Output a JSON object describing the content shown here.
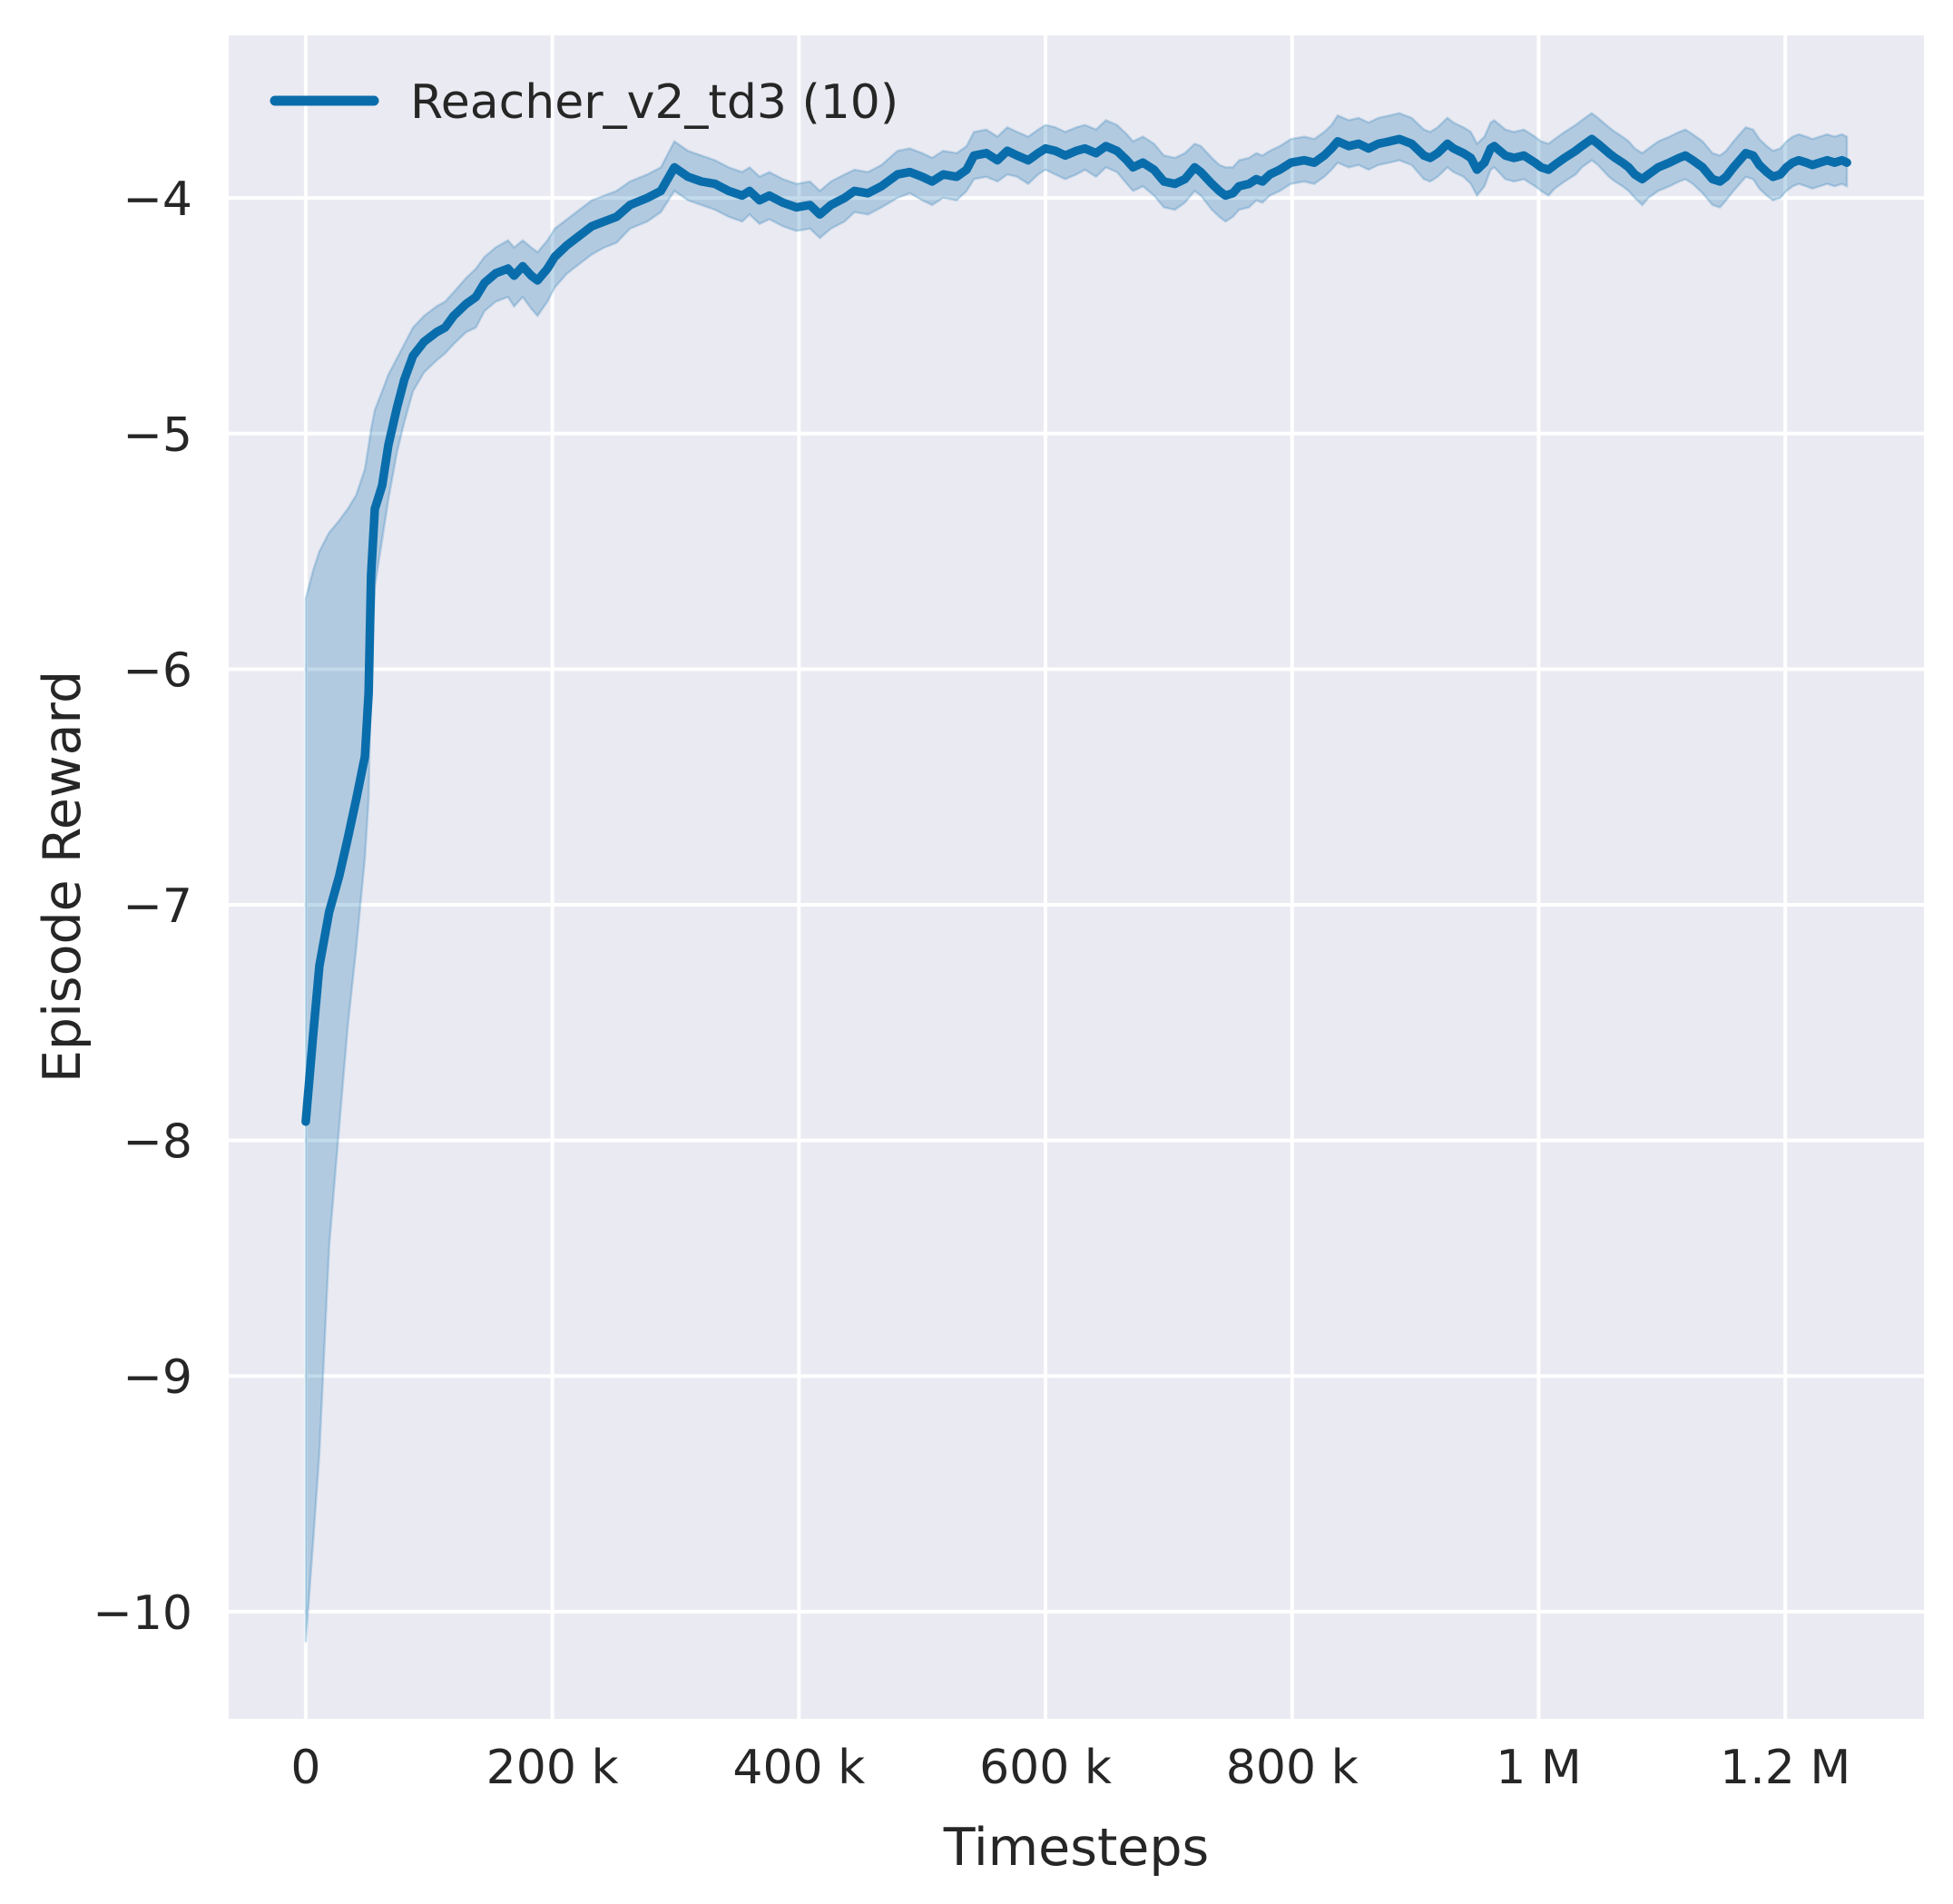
{
  "figure": {
    "background_color": "#ffffff",
    "axes_background_color": "#eaeaf2",
    "grid_color": "#ffffff",
    "text_color": "#262626"
  },
  "chart_data": {
    "type": "line",
    "title": "",
    "xlabel": "Timesteps",
    "ylabel": "Episode Reward",
    "grid": true,
    "legend_position": "upper left",
    "xlim_thousands": [
      -62.5,
      1312.5
    ],
    "ylim": [
      -10.455,
      -3.31
    ],
    "x_ticks": [
      {
        "value": 0,
        "label": "0"
      },
      {
        "value": 200,
        "label": "200 k"
      },
      {
        "value": 400,
        "label": "400 k"
      },
      {
        "value": 600,
        "label": "600 k"
      },
      {
        "value": 800,
        "label": "800 k"
      },
      {
        "value": 1000,
        "label": "1 M"
      },
      {
        "value": 1200,
        "label": "1.2 M"
      }
    ],
    "y_ticks": [
      {
        "value": -4,
        "label": "−4"
      },
      {
        "value": -5,
        "label": "−5"
      },
      {
        "value": -6,
        "label": "−6"
      },
      {
        "value": -7,
        "label": "−7"
      },
      {
        "value": -8,
        "label": "−8"
      },
      {
        "value": -9,
        "label": "−9"
      },
      {
        "value": -10,
        "label": "−10"
      }
    ],
    "series": [
      {
        "name": "Reacher_v2_td3 (10)",
        "color": "#0a6dab",
        "band_fill": "rgba(10,109,171,0.25)",
        "band_edge": "rgba(10,109,171,0.22)",
        "x_thousands": [
          0,
          6,
          11,
          19,
          27,
          34,
          41,
          48,
          51,
          53,
          56,
          62,
          67,
          74,
          80,
          87,
          96,
          106,
          113,
          120,
          130,
          138,
          145,
          154,
          164,
          169,
          176,
          183,
          188,
          196,
          202,
          212,
          222,
          232,
          242,
          252,
          263,
          277,
          288,
          299,
          310,
          321,
          332,
          343,
          354,
          360,
          368,
          376,
          387,
          398,
          409,
          417,
          426,
          437,
          445,
          456,
          467,
          480,
          490,
          500,
          508,
          517,
          528,
          536,
          542,
          552,
          561,
          569,
          577,
          586,
          594,
          600,
          608,
          616,
          625,
          632,
          641,
          649,
          658,
          666,
          671,
          679,
          688,
          696,
          705,
          713,
          721,
          726,
          735,
          741,
          746,
          752,
          757,
          765,
          771,
          776,
          782,
          790,
          799,
          810,
          818,
          826,
          832,
          837,
          846,
          854,
          862,
          870,
          879,
          887,
          897,
          907,
          912,
          918,
          926,
          931,
          939,
          945,
          950,
          956,
          961,
          964,
          973,
          980,
          988,
          997,
          1002,
          1008,
          1013,
          1021,
          1030,
          1035,
          1043,
          1048,
          1057,
          1062,
          1068,
          1073,
          1078,
          1084,
          1089,
          1097,
          1106,
          1114,
          1119,
          1125,
          1133,
          1141,
          1147,
          1152,
          1158,
          1163,
          1168,
          1174,
          1179,
          1185,
          1190,
          1196,
          1201,
          1206,
          1211,
          1217,
          1222,
          1228,
          1234,
          1240,
          1246,
          1250
        ],
        "mean": [
          -7.92,
          -7.55,
          -7.26,
          -7.03,
          -6.88,
          -6.72,
          -6.55,
          -6.37,
          -6.1,
          -5.6,
          -5.32,
          -5.22,
          -5.05,
          -4.89,
          -4.77,
          -4.67,
          -4.61,
          -4.57,
          -4.55,
          -4.5,
          -4.45,
          -4.42,
          -4.36,
          -4.32,
          -4.3,
          -4.33,
          -4.29,
          -4.33,
          -4.35,
          -4.3,
          -4.25,
          -4.2,
          -4.16,
          -4.12,
          -4.1,
          -4.08,
          -4.03,
          -4.0,
          -3.97,
          -3.87,
          -3.91,
          -3.93,
          -3.94,
          -3.97,
          -3.99,
          -3.97,
          -4.01,
          -3.99,
          -4.02,
          -4.04,
          -4.03,
          -4.07,
          -4.03,
          -4.0,
          -3.97,
          -3.98,
          -3.95,
          -3.9,
          -3.89,
          -3.91,
          -3.93,
          -3.9,
          -3.91,
          -3.88,
          -3.82,
          -3.81,
          -3.84,
          -3.8,
          -3.82,
          -3.84,
          -3.81,
          -3.79,
          -3.8,
          -3.82,
          -3.8,
          -3.79,
          -3.81,
          -3.78,
          -3.8,
          -3.84,
          -3.87,
          -3.85,
          -3.88,
          -3.93,
          -3.94,
          -3.92,
          -3.87,
          -3.89,
          -3.94,
          -3.97,
          -3.99,
          -3.98,
          -3.95,
          -3.94,
          -3.92,
          -3.93,
          -3.9,
          -3.88,
          -3.85,
          -3.84,
          -3.85,
          -3.82,
          -3.79,
          -3.76,
          -3.78,
          -3.77,
          -3.79,
          -3.77,
          -3.76,
          -3.75,
          -3.77,
          -3.82,
          -3.83,
          -3.81,
          -3.77,
          -3.79,
          -3.81,
          -3.83,
          -3.88,
          -3.85,
          -3.79,
          -3.78,
          -3.82,
          -3.83,
          -3.82,
          -3.85,
          -3.87,
          -3.88,
          -3.86,
          -3.83,
          -3.8,
          -3.78,
          -3.75,
          -3.77,
          -3.81,
          -3.83,
          -3.85,
          -3.87,
          -3.9,
          -3.92,
          -3.9,
          -3.87,
          -3.85,
          -3.83,
          -3.82,
          -3.84,
          -3.87,
          -3.92,
          -3.93,
          -3.91,
          -3.87,
          -3.84,
          -3.81,
          -3.82,
          -3.86,
          -3.89,
          -3.91,
          -3.9,
          -3.87,
          -3.85,
          -3.84,
          -3.85,
          -3.86,
          -3.85,
          -3.84,
          -3.85,
          -3.84,
          -3.85
        ],
        "lower": [
          -10.13,
          -9.7,
          -9.33,
          -8.45,
          -7.95,
          -7.52,
          -7.18,
          -6.8,
          -6.55,
          -6.0,
          -5.65,
          -5.45,
          -5.28,
          -5.08,
          -4.95,
          -4.82,
          -4.74,
          -4.69,
          -4.66,
          -4.62,
          -4.57,
          -4.55,
          -4.48,
          -4.44,
          -4.42,
          -4.46,
          -4.42,
          -4.47,
          -4.5,
          -4.44,
          -4.38,
          -4.32,
          -4.28,
          -4.24,
          -4.21,
          -4.19,
          -4.13,
          -4.1,
          -4.06,
          -3.97,
          -4.01,
          -4.03,
          -4.05,
          -4.08,
          -4.1,
          -4.07,
          -4.11,
          -4.09,
          -4.12,
          -4.14,
          -4.13,
          -4.17,
          -4.13,
          -4.1,
          -4.06,
          -4.07,
          -4.04,
          -4.0,
          -3.98,
          -4.01,
          -4.03,
          -4.0,
          -4.01,
          -3.97,
          -3.92,
          -3.91,
          -3.93,
          -3.9,
          -3.91,
          -3.94,
          -3.9,
          -3.88,
          -3.9,
          -3.92,
          -3.9,
          -3.88,
          -3.91,
          -3.87,
          -3.89,
          -3.94,
          -3.97,
          -3.95,
          -3.99,
          -4.04,
          -4.05,
          -4.02,
          -3.97,
          -3.99,
          -4.05,
          -4.08,
          -4.1,
          -4.08,
          -4.05,
          -4.04,
          -4.01,
          -4.02,
          -3.99,
          -3.97,
          -3.94,
          -3.93,
          -3.94,
          -3.91,
          -3.88,
          -3.85,
          -3.87,
          -3.86,
          -3.88,
          -3.86,
          -3.85,
          -3.84,
          -3.86,
          -3.92,
          -3.93,
          -3.91,
          -3.87,
          -3.89,
          -3.91,
          -3.94,
          -3.99,
          -3.95,
          -3.88,
          -3.87,
          -3.92,
          -3.93,
          -3.92,
          -3.95,
          -3.97,
          -3.99,
          -3.96,
          -3.93,
          -3.9,
          -3.87,
          -3.84,
          -3.86,
          -3.91,
          -3.93,
          -3.95,
          -3.97,
          -4.0,
          -4.03,
          -4.0,
          -3.97,
          -3.95,
          -3.93,
          -3.92,
          -3.94,
          -3.98,
          -4.03,
          -4.04,
          -4.01,
          -3.97,
          -3.94,
          -3.91,
          -3.92,
          -3.96,
          -3.99,
          -4.01,
          -4.0,
          -3.97,
          -3.95,
          -3.94,
          -3.95,
          -3.96,
          -3.95,
          -3.94,
          -3.95,
          -3.94,
          -3.95
        ],
        "upper": [
          -5.7,
          -5.58,
          -5.5,
          -5.42,
          -5.37,
          -5.32,
          -5.26,
          -5.15,
          -5.05,
          -4.98,
          -4.9,
          -4.82,
          -4.75,
          -4.68,
          -4.62,
          -4.55,
          -4.5,
          -4.46,
          -4.44,
          -4.4,
          -4.34,
          -4.3,
          -4.25,
          -4.21,
          -4.18,
          -4.21,
          -4.18,
          -4.21,
          -4.23,
          -4.18,
          -4.13,
          -4.09,
          -4.05,
          -4.01,
          -3.99,
          -3.97,
          -3.93,
          -3.9,
          -3.87,
          -3.76,
          -3.8,
          -3.82,
          -3.84,
          -3.87,
          -3.89,
          -3.87,
          -3.91,
          -3.89,
          -3.92,
          -3.94,
          -3.93,
          -3.97,
          -3.93,
          -3.9,
          -3.88,
          -3.89,
          -3.86,
          -3.8,
          -3.79,
          -3.81,
          -3.83,
          -3.8,
          -3.81,
          -3.78,
          -3.72,
          -3.71,
          -3.74,
          -3.7,
          -3.72,
          -3.74,
          -3.71,
          -3.69,
          -3.7,
          -3.72,
          -3.7,
          -3.69,
          -3.71,
          -3.67,
          -3.69,
          -3.73,
          -3.76,
          -3.74,
          -3.77,
          -3.82,
          -3.83,
          -3.81,
          -3.77,
          -3.78,
          -3.83,
          -3.86,
          -3.87,
          -3.87,
          -3.84,
          -3.83,
          -3.81,
          -3.82,
          -3.8,
          -3.78,
          -3.75,
          -3.74,
          -3.75,
          -3.72,
          -3.69,
          -3.65,
          -3.67,
          -3.66,
          -3.68,
          -3.66,
          -3.65,
          -3.64,
          -3.66,
          -3.71,
          -3.72,
          -3.7,
          -3.66,
          -3.68,
          -3.7,
          -3.72,
          -3.77,
          -3.74,
          -3.68,
          -3.67,
          -3.71,
          -3.72,
          -3.71,
          -3.74,
          -3.76,
          -3.77,
          -3.75,
          -3.72,
          -3.69,
          -3.67,
          -3.64,
          -3.66,
          -3.7,
          -3.72,
          -3.74,
          -3.76,
          -3.79,
          -3.81,
          -3.79,
          -3.76,
          -3.74,
          -3.72,
          -3.71,
          -3.73,
          -3.76,
          -3.81,
          -3.82,
          -3.8,
          -3.76,
          -3.73,
          -3.7,
          -3.71,
          -3.75,
          -3.78,
          -3.8,
          -3.79,
          -3.76,
          -3.74,
          -3.73,
          -3.74,
          -3.75,
          -3.74,
          -3.73,
          -3.74,
          -3.73,
          -3.74
        ]
      }
    ]
  }
}
